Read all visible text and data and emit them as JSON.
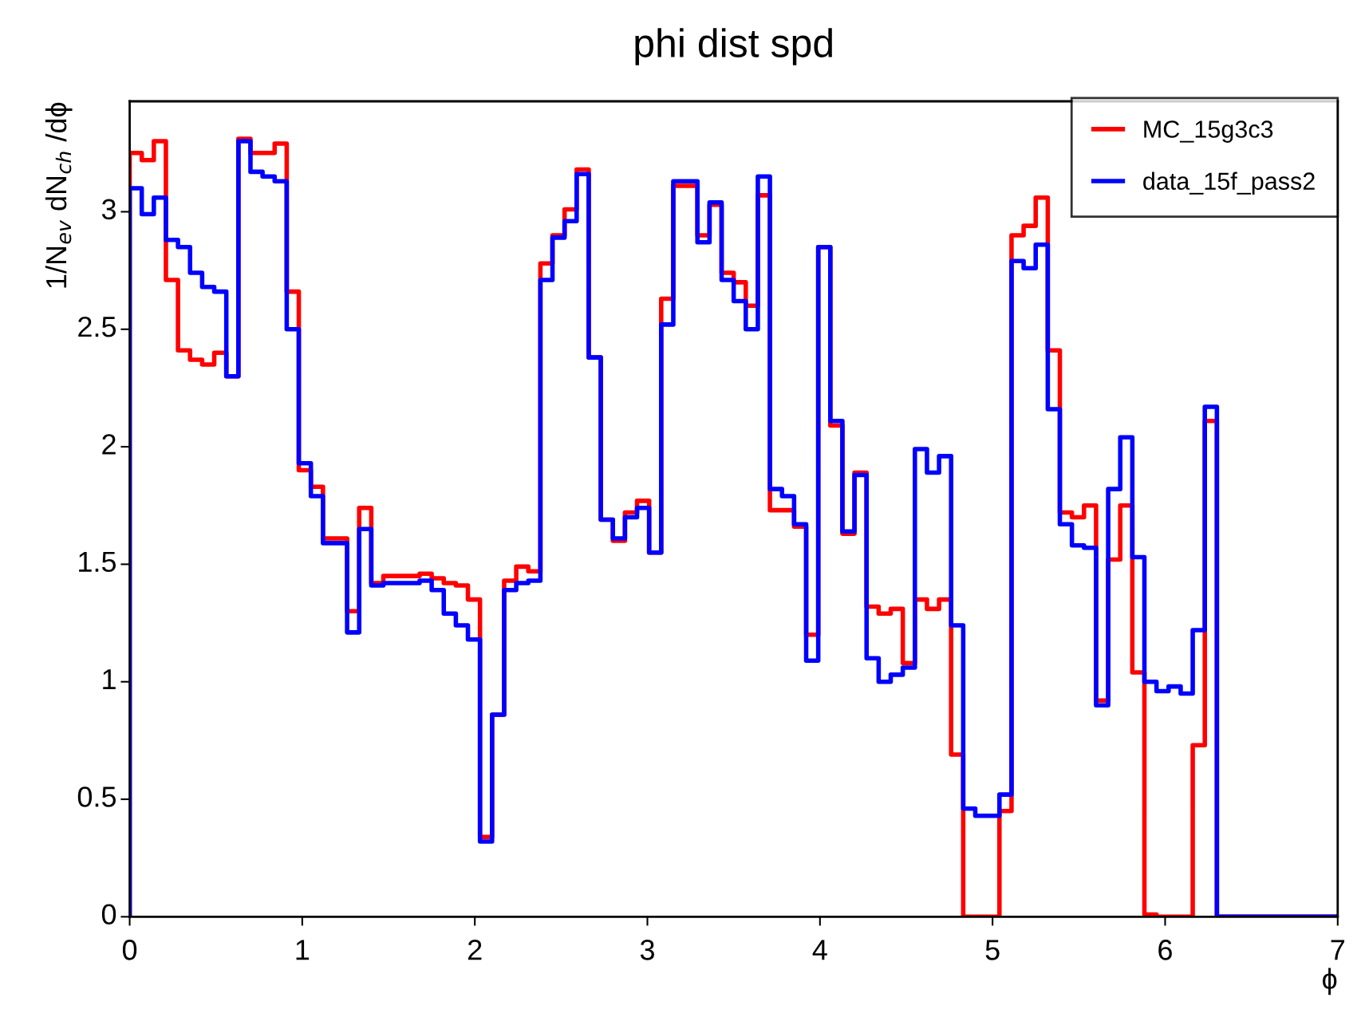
{
  "chart_data": {
    "type": "histogram",
    "title": "phi dist spd",
    "xlabel": "ϕ",
    "ylabel": "1/N$_{ev}$ dN$_{ch}$ /dϕ",
    "bins": [
      0,
      0.07,
      0.14,
      0.21,
      0.28,
      0.35,
      0.42,
      0.49,
      0.56,
      0.63,
      0.7,
      0.77,
      0.84,
      0.91,
      0.98,
      1.05,
      1.12,
      1.19,
      1.26,
      1.33,
      1.4,
      1.47,
      1.54,
      1.61,
      1.68,
      1.75,
      1.82,
      1.89,
      1.96,
      2.03,
      2.1,
      2.17,
      2.24,
      2.31,
      2.38,
      2.45,
      2.52,
      2.59,
      2.66,
      2.73,
      2.8,
      2.87,
      2.94,
      3.01,
      3.08,
      3.15,
      3.22,
      3.29,
      3.36,
      3.43,
      3.5,
      3.57,
      3.64,
      3.71,
      3.78,
      3.85,
      3.92,
      3.99,
      4.06,
      4.13,
      4.2,
      4.27,
      4.34,
      4.41,
      4.48,
      4.55,
      4.62,
      4.69,
      4.76,
      4.83,
      4.9,
      4.97,
      5.04,
      5.11,
      5.18,
      5.25,
      5.32,
      5.39,
      5.46,
      5.53,
      5.6,
      5.67,
      5.74,
      5.81,
      5.88,
      5.95,
      6.02,
      6.09,
      6.16,
      6.23,
      6.3,
      6.37,
      6.44,
      6.51,
      6.58,
      6.65,
      6.72,
      6.79,
      6.86,
      6.93,
      7
    ],
    "series": [
      {
        "name": "MC_15g3c3",
        "color": "#ff0000",
        "values": [
          3.25,
          3.22,
          3.3,
          2.71,
          2.41,
          2.37,
          2.35,
          2.4,
          2.3,
          3.31,
          3.25,
          3.25,
          3.29,
          2.66,
          1.9,
          1.83,
          1.61,
          1.61,
          1.3,
          1.74,
          1.42,
          1.45,
          1.45,
          1.45,
          1.46,
          1.44,
          1.42,
          1.41,
          1.35,
          0.34,
          0.86,
          1.43,
          1.49,
          1.47,
          2.78,
          2.9,
          3.01,
          3.18,
          2.38,
          1.69,
          1.6,
          1.72,
          1.77,
          1.55,
          2.63,
          3.11,
          3.11,
          2.9,
          3.03,
          2.74,
          2.7,
          2.6,
          3.07,
          1.73,
          1.73,
          1.66,
          1.2,
          2.85,
          2.09,
          1.63,
          1.89,
          1.32,
          1.29,
          1.31,
          1.08,
          1.35,
          1.31,
          1.35,
          0.69,
          0,
          0,
          0,
          0.45,
          2.9,
          2.94,
          3.06,
          2.41,
          1.72,
          1.7,
          1.75,
          0.92,
          1.52,
          1.75,
          1.04,
          0.01,
          0,
          0,
          0,
          0.73,
          2.11,
          0,
          0,
          0,
          0,
          0,
          0,
          0,
          0,
          0,
          0
        ]
      },
      {
        "name": "data_15f_pass2",
        "color": "#0000ff",
        "values": [
          3.1,
          2.99,
          3.06,
          2.88,
          2.85,
          2.74,
          2.68,
          2.66,
          2.3,
          3.3,
          3.17,
          3.15,
          3.13,
          2.5,
          1.93,
          1.79,
          1.59,
          1.59,
          1.21,
          1.65,
          1.41,
          1.42,
          1.42,
          1.42,
          1.43,
          1.39,
          1.29,
          1.24,
          1.18,
          0.32,
          0.86,
          1.39,
          1.42,
          1.43,
          2.71,
          2.89,
          2.96,
          3.16,
          2.38,
          1.69,
          1.61,
          1.7,
          1.74,
          1.55,
          2.52,
          3.13,
          3.13,
          2.87,
          3.04,
          2.71,
          2.62,
          2.5,
          3.15,
          1.82,
          1.79,
          1.67,
          1.09,
          2.85,
          2.11,
          1.64,
          1.88,
          1.1,
          1.0,
          1.03,
          1.06,
          1.99,
          1.89,
          1.96,
          1.24,
          0.46,
          0.43,
          0.43,
          0.52,
          2.79,
          2.76,
          2.86,
          2.16,
          1.67,
          1.58,
          1.57,
          0.9,
          1.82,
          2.04,
          1.53,
          1.0,
          0.96,
          0.98,
          0.95,
          1.22,
          2.17,
          0,
          0,
          0,
          0,
          0,
          0,
          0,
          0,
          0,
          0
        ]
      }
    ],
    "xlim": [
      0,
      7
    ],
    "xticks": [
      0,
      1,
      2,
      3,
      4,
      5,
      6,
      7
    ],
    "ylim": [
      0,
      3.47
    ],
    "yticks": [
      0,
      0.5,
      1,
      1.5,
      2,
      2.5,
      3
    ],
    "grid": false,
    "legend": "top right"
  }
}
